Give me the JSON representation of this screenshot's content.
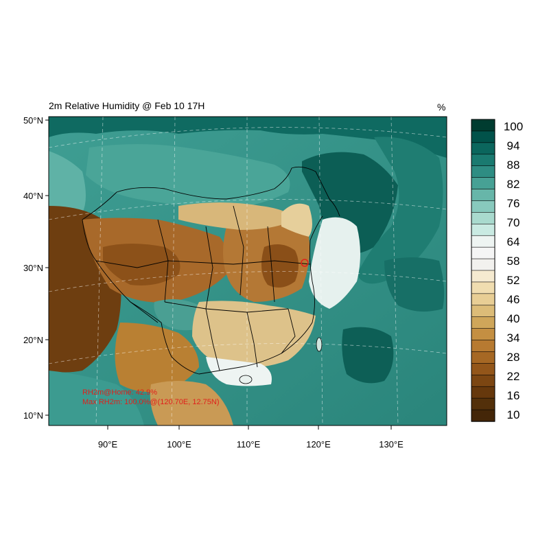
{
  "map": {
    "title": "2m Relative Humidity @ Feb 10 17H",
    "units": "%",
    "lat_ticks": [
      "50°N",
      "40°N",
      "30°N",
      "20°N",
      "10°N"
    ],
    "lon_ticks": [
      "90°E",
      "100°E",
      "110°E",
      "120°E",
      "130°E"
    ],
    "annotation_home": "RH2m@Home: 42.9%",
    "annotation_max": "Max RH2m: 100.0%@(120.70E, 12.75N)",
    "home_marker_color": "#e0201b",
    "annotation_color": "#e0201b"
  },
  "colorbar": {
    "labels": [
      "100",
      "94",
      "88",
      "82",
      "76",
      "70",
      "64",
      "58",
      "52",
      "46",
      "40",
      "34",
      "28",
      "22",
      "16",
      "10"
    ],
    "colors_top_to_bottom": [
      "#003c30",
      "#01524a",
      "#0b665d",
      "#1a7a70",
      "#2e8d83",
      "#47a195",
      "#67b6a9",
      "#88c9bd",
      "#a9dace",
      "#c9eae2",
      "#eef4f2",
      "#f5f5f5",
      "#f2f1ee",
      "#f5ead0",
      "#f0ddb0",
      "#e8ce95",
      "#dcbc78",
      "#cfa65a",
      "#c48f42",
      "#b77a31",
      "#a66824",
      "#93561a",
      "#7c4612",
      "#66380c",
      "#53300a",
      "#442608"
    ]
  }
}
